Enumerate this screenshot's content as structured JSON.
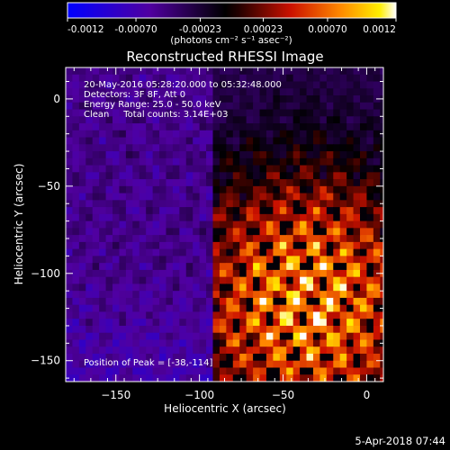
{
  "colorbar": {
    "ticks": [
      "-0.0012",
      "-0.00070",
      "-0.00023",
      "0.00023",
      "0.00070",
      "0.0012"
    ],
    "tick_values": [
      -0.0012,
      -0.0007,
      -0.00023,
      0.00023,
      0.0007,
      0.0012
    ],
    "range": [
      -0.0012,
      0.0012
    ],
    "unit": "(photons cm⁻² s⁻¹ asec⁻²)"
  },
  "chart_data": {
    "type": "heatmap",
    "title": "Reconstructed RHESSI Image",
    "xlabel": "Heliocentric X (arcsec)",
    "ylabel": "Heliocentric Y (arcsec)",
    "xlim": [
      -180,
      10
    ],
    "ylim": [
      -162,
      18
    ],
    "xticks": [
      -150,
      -100,
      -50,
      0
    ],
    "yticks": [
      0,
      -50,
      -100,
      -150
    ],
    "xtick_labels": [
      "−150",
      "−100",
      "−50",
      "0"
    ],
    "ytick_labels": [
      "0",
      "−50",
      "−100",
      "−150"
    ],
    "peak": [
      -38,
      -114
    ],
    "colormap": [
      "#0000ff",
      "#4b0096",
      "#000000",
      "#aa0000",
      "#ff8800",
      "#ffff00",
      "#ffffff"
    ],
    "annotations": [
      "20-May-2016 05:28:20.000 to 05:32:48.000",
      "Detectors: 3F 8F, Att 0",
      "Energy Range: 25.0 - 50.0 keV",
      "Clean     Total counts: 3.14E+03"
    ],
    "peak_label": "Position of Peak = [-38,-114]"
  },
  "footer": {
    "timestamp": "5-Apr-2018 07:44"
  }
}
